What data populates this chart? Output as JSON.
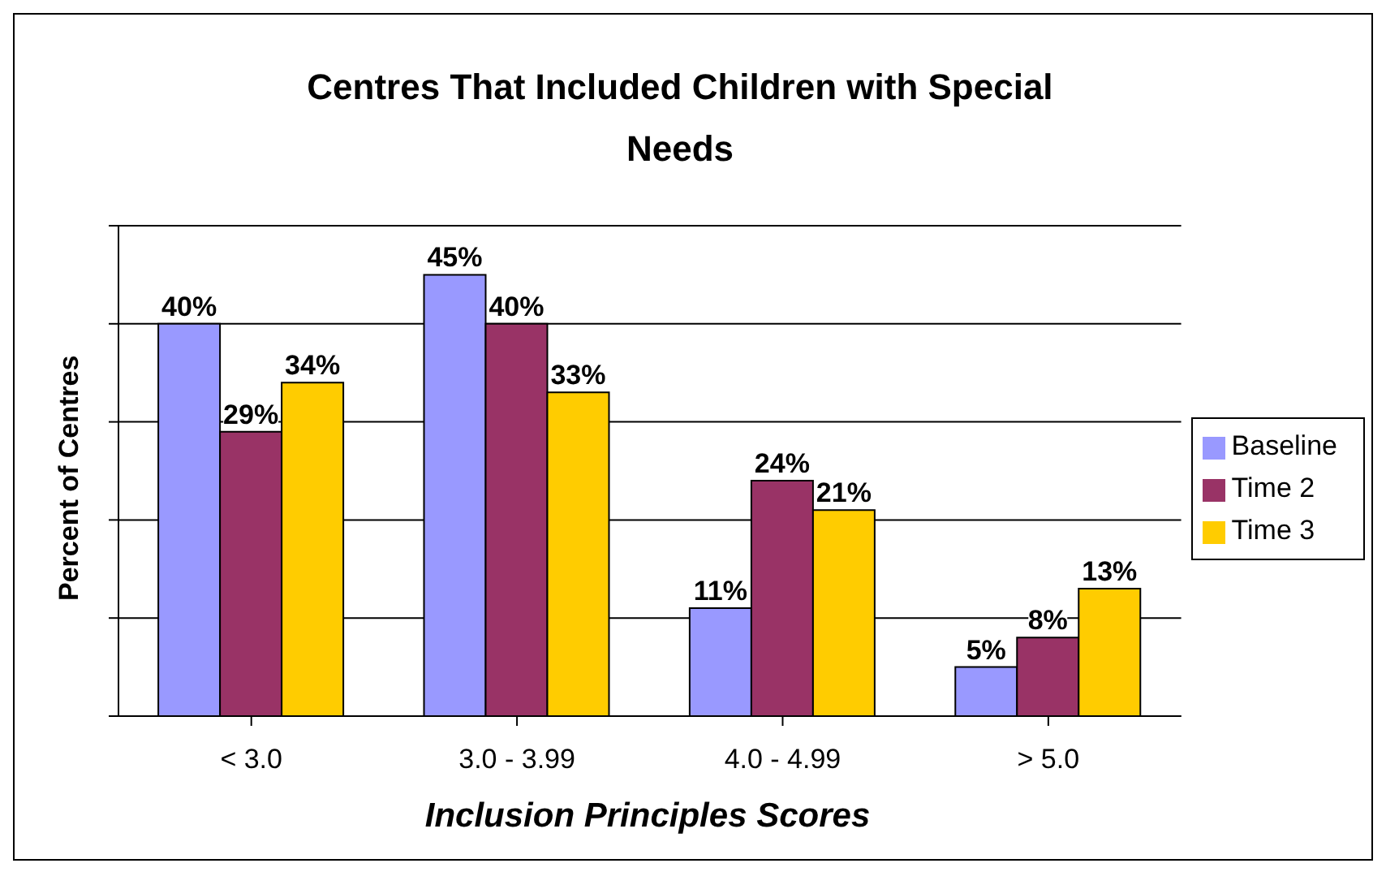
{
  "chart_data": {
    "type": "bar",
    "title": "Centres That Included Children with Special Needs",
    "xlabel": "Inclusion Principles Scores",
    "ylabel": "Percent of Centres",
    "categories": [
      "< 3.0",
      "3.0 - 3.99",
      "4.0 - 4.99",
      "> 5.0"
    ],
    "series": [
      {
        "name": "Baseline",
        "color": "#9999ff",
        "values": [
          40,
          45,
          11,
          5
        ],
        "value_labels": [
          "40%",
          "45%",
          "11%",
          "5%"
        ]
      },
      {
        "name": "Time 2",
        "color": "#993366",
        "values": [
          29,
          40,
          24,
          8
        ],
        "value_labels": [
          "29%",
          "40%",
          "24%",
          "8%"
        ]
      },
      {
        "name": "Time 3",
        "color": "#ffcc00",
        "values": [
          34,
          33,
          21,
          13
        ],
        "value_labels": [
          "34%",
          "33%",
          "21%",
          "13%"
        ]
      }
    ],
    "ylim": [
      0,
      50
    ],
    "tick_labels": "x",
    "grid": "y",
    "legend": "right"
  }
}
